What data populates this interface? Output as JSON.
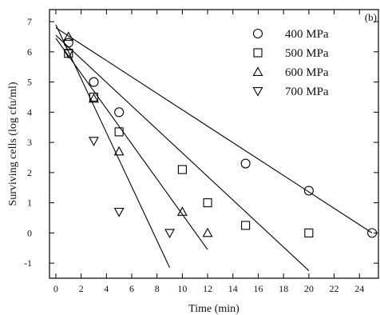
{
  "chart_data": {
    "type": "scatter",
    "panel_label": "(b)",
    "xlabel": "Time (min)",
    "ylabel": "Surviving cells (log cfu/ml)",
    "xlim": [
      -0.5,
      25.5
    ],
    "ylim": [
      -1.5,
      7.4
    ],
    "xticks": [
      0,
      2,
      4,
      6,
      8,
      10,
      12,
      14,
      16,
      18,
      20,
      22,
      24
    ],
    "yticks": [
      -1,
      0,
      1,
      2,
      3,
      4,
      5,
      6,
      7
    ],
    "grid": false,
    "legend_position": "top-right",
    "series": [
      {
        "name": "400 MPa",
        "marker": "circle",
        "x": [
          1,
          3,
          5,
          15,
          20,
          25
        ],
        "y": [
          6.3,
          5.0,
          4.0,
          2.3,
          1.4,
          0.0
        ],
        "fit": {
          "x": [
            0,
            25
          ],
          "y": [
            6.8,
            0.0
          ]
        }
      },
      {
        "name": "500 MPa",
        "marker": "square",
        "x": [
          1,
          3,
          5,
          10,
          12,
          15,
          20
        ],
        "y": [
          5.95,
          4.5,
          3.35,
          2.1,
          1.0,
          0.25,
          0.0
        ],
        "fit": {
          "x": [
            0,
            20
          ],
          "y": [
            6.55,
            -1.25
          ]
        }
      },
      {
        "name": "600 MPa",
        "marker": "triangle-up",
        "x": [
          1,
          3,
          5,
          10,
          12
        ],
        "y": [
          6.5,
          4.45,
          2.7,
          0.7,
          0.0
        ],
        "fit": {
          "x": [
            0,
            12
          ],
          "y": [
            6.45,
            -0.55
          ]
        }
      },
      {
        "name": "700 MPa",
        "marker": "triangle-down",
        "x": [
          1,
          3,
          5,
          9
        ],
        "y": [
          5.95,
          3.05,
          0.7,
          0.0
        ],
        "fit": {
          "x": [
            0,
            9
          ],
          "y": [
            6.9,
            -1.15
          ]
        }
      }
    ]
  }
}
